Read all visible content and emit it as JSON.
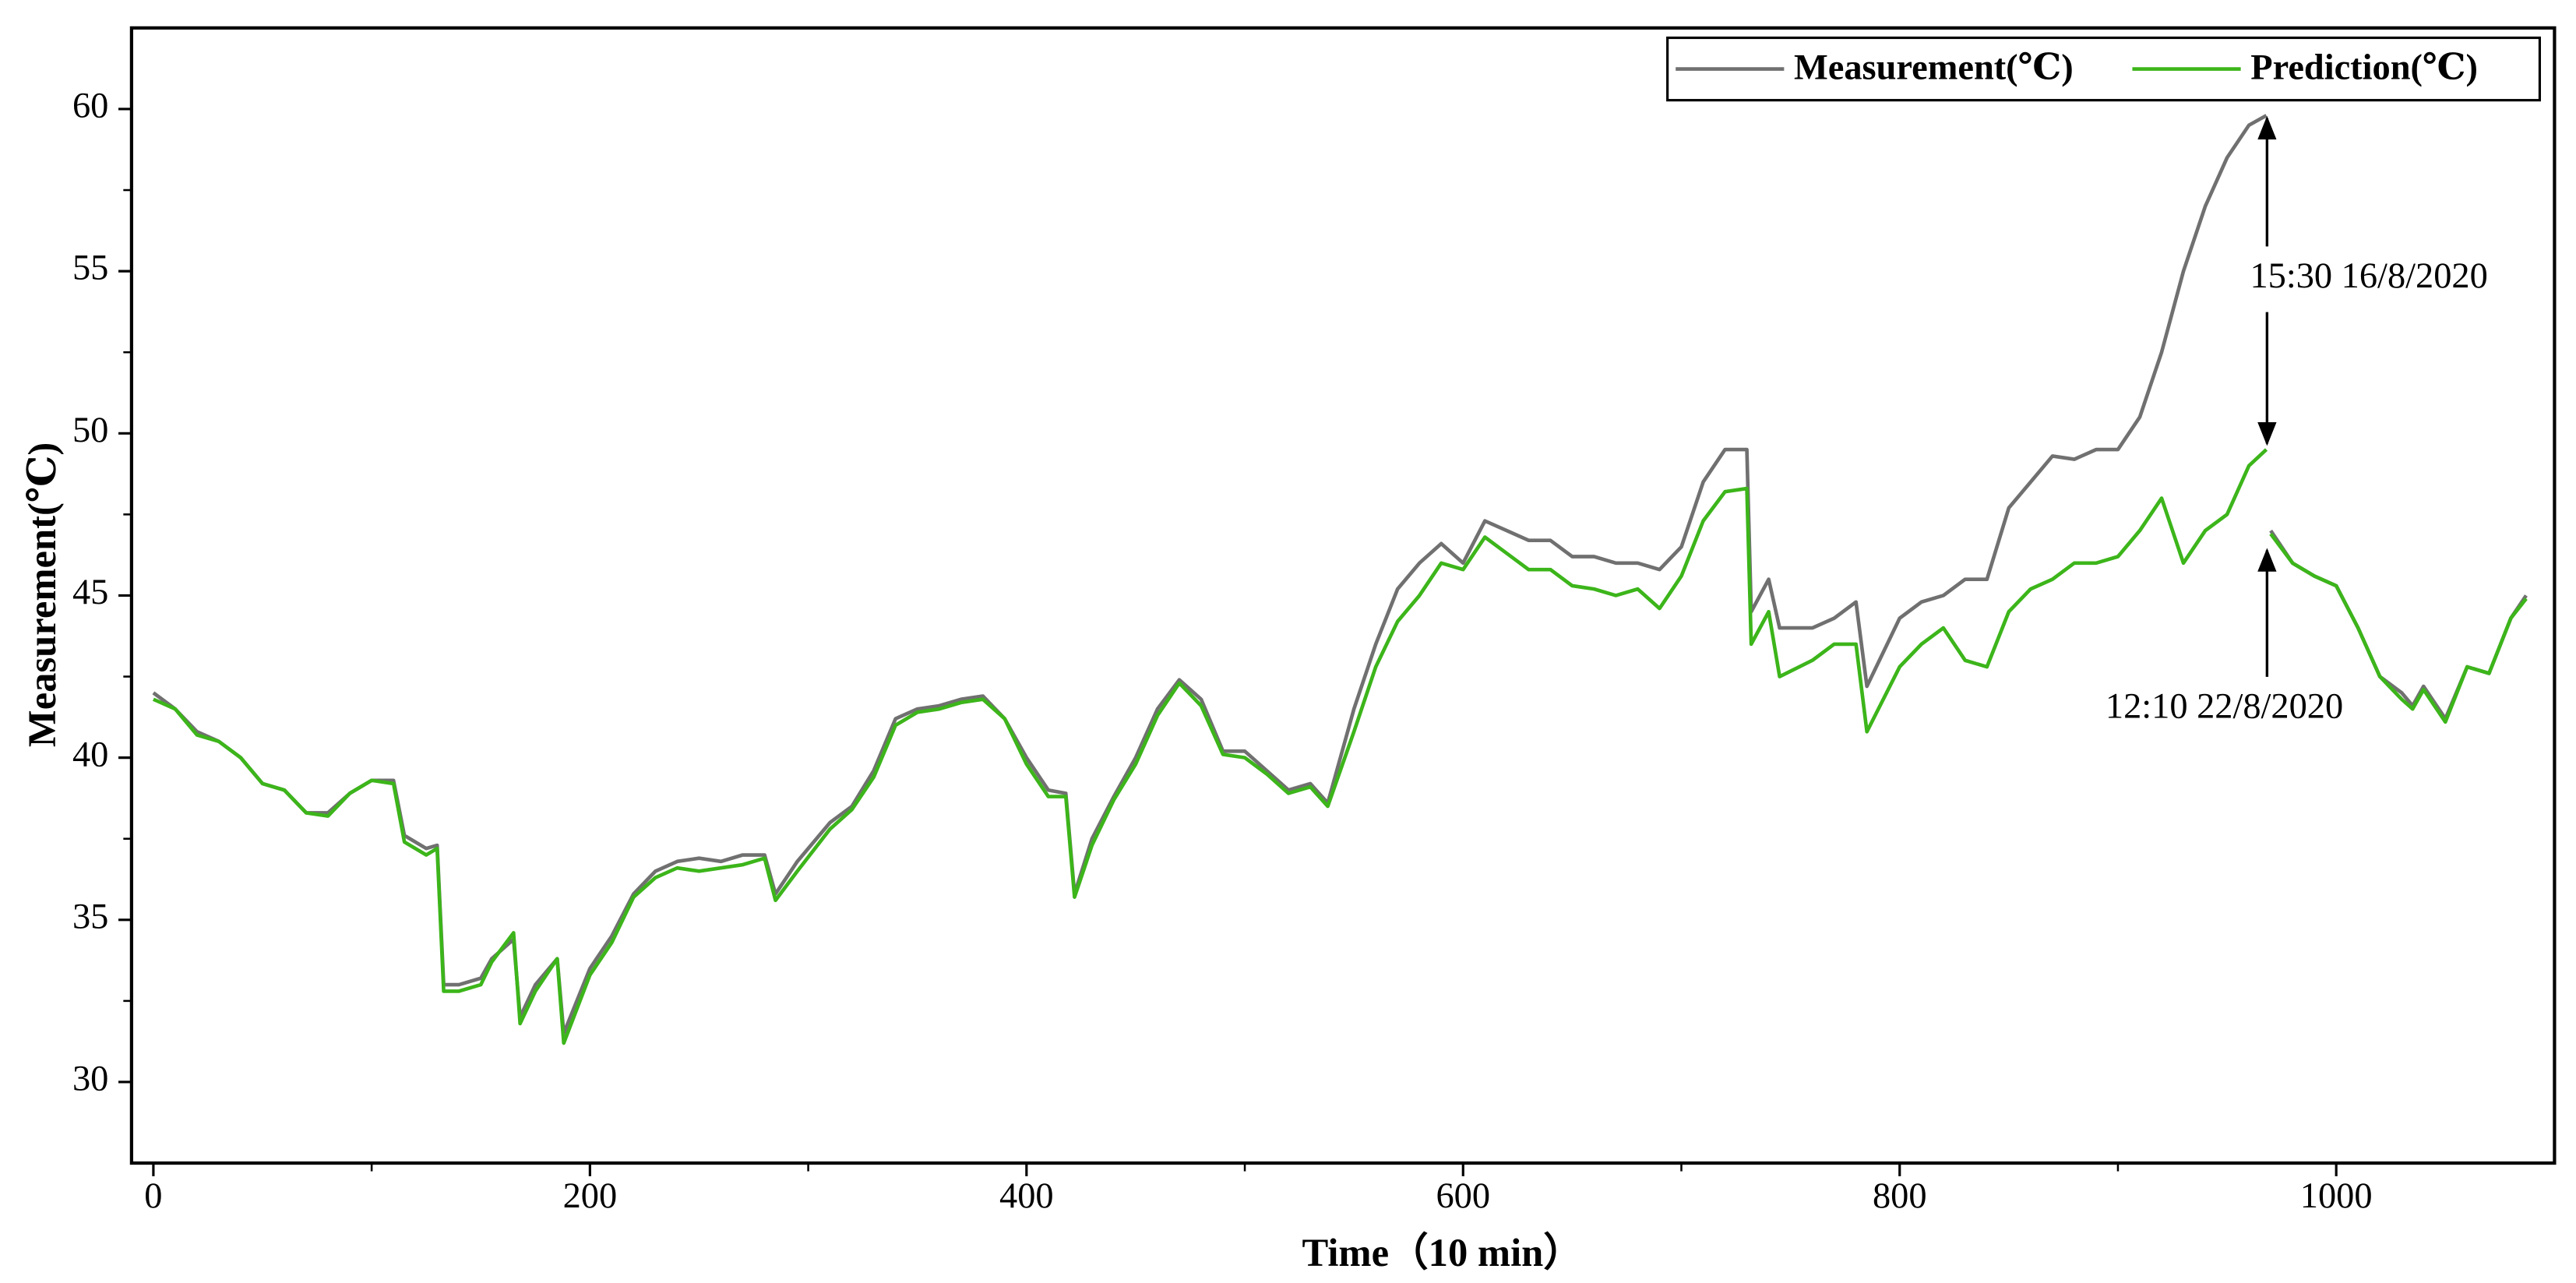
{
  "chart_data": {
    "type": "line",
    "xlabel": "Time（10 min）",
    "ylabel": "Measurement(℃)",
    "xlim": [
      -10,
      1100
    ],
    "ylim": [
      27.5,
      62.5
    ],
    "xticks": [
      0,
      200,
      400,
      600,
      800,
      1000
    ],
    "yticks": [
      30,
      35,
      40,
      45,
      50,
      55,
      60
    ],
    "legend": "upper right",
    "annotations": [
      "15:30 16/8/2020",
      "12:10 22/8/2020"
    ],
    "x": [
      0,
      10,
      20,
      30,
      40,
      50,
      60,
      70,
      80,
      90,
      100,
      110,
      115,
      125,
      130,
      133,
      140,
      150,
      155,
      165,
      168,
      175,
      185,
      188,
      200,
      210,
      220,
      230,
      240,
      250,
      260,
      270,
      280,
      285,
      295,
      310,
      320,
      330,
      340,
      350,
      360,
      370,
      380,
      390,
      400,
      410,
      418,
      422,
      430,
      440,
      450,
      460,
      470,
      480,
      490,
      500,
      510,
      520,
      530,
      538,
      550,
      560,
      570,
      580,
      590,
      600,
      610,
      620,
      630,
      640,
      650,
      660,
      670,
      680,
      690,
      700,
      710,
      720,
      730,
      732,
      740,
      745,
      760,
      770,
      780,
      785,
      800,
      810,
      820,
      830,
      840,
      850,
      860,
      870,
      880,
      890,
      900,
      910,
      920,
      930,
      940,
      950,
      960,
      968,
      969,
      970,
      980,
      990,
      1000,
      1010,
      1020,
      1030,
      1035,
      1040,
      1050,
      1060,
      1070,
      1080,
      1087
    ],
    "series": [
      {
        "name": "Measurement(℃)",
        "color": "#707070",
        "values": [
          42,
          41.5,
          40.8,
          40.5,
          40.0,
          39.2,
          39.0,
          38.3,
          38.3,
          38.9,
          39.3,
          39.3,
          37.6,
          37.2,
          37.3,
          33.0,
          33.0,
          33.2,
          33.8,
          34.4,
          32.0,
          33.0,
          33.8,
          31.5,
          33.5,
          34.5,
          35.8,
          36.5,
          36.8,
          36.9,
          36.8,
          37.0,
          37.0,
          35.8,
          36.8,
          38.0,
          38.5,
          39.6,
          41.2,
          41.5,
          41.6,
          41.8,
          41.9,
          41.2,
          40.0,
          39.0,
          38.9,
          35.8,
          37.5,
          38.8,
          40.0,
          41.5,
          42.4,
          41.8,
          40.2,
          40.2,
          39.6,
          39.0,
          39.2,
          38.6,
          41.5,
          43.5,
          45.2,
          46.0,
          46.6,
          46.0,
          47.3,
          47.0,
          46.7,
          46.7,
          46.2,
          46.2,
          46.0,
          46.0,
          45.8,
          46.5,
          48.5,
          49.5,
          49.5,
          44.5,
          45.5,
          44.0,
          44.0,
          44.3,
          44.8,
          42.2,
          44.3,
          44.8,
          45.0,
          45.5,
          45.5,
          47.7,
          48.5,
          49.3,
          49.2,
          49.5,
          49.5,
          50.5,
          52.5,
          55.0,
          57.0,
          58.5,
          59.5,
          59.8,
          null,
          47.0,
          46.0,
          45.6,
          45.3,
          44.0,
          42.5,
          42.0,
          41.6,
          42.2,
          41.2,
          42.8,
          42.6,
          44.3,
          45.0
        ]
      },
      {
        "name": "Prediction(℃)",
        "color": "#3cb51a",
        "values": [
          41.8,
          41.5,
          40.7,
          40.5,
          40.0,
          39.2,
          39.0,
          38.3,
          38.2,
          38.9,
          39.3,
          39.2,
          37.4,
          37.0,
          37.2,
          32.8,
          32.8,
          33.0,
          33.7,
          34.6,
          31.8,
          32.8,
          33.8,
          31.2,
          33.3,
          34.3,
          35.7,
          36.3,
          36.6,
          36.5,
          36.6,
          36.7,
          36.9,
          35.6,
          36.5,
          37.8,
          38.4,
          39.4,
          41.0,
          41.4,
          41.5,
          41.7,
          41.8,
          41.2,
          39.8,
          38.8,
          38.8,
          35.7,
          37.3,
          38.7,
          39.8,
          41.3,
          42.3,
          41.6,
          40.1,
          40.0,
          39.5,
          38.9,
          39.1,
          38.5,
          40.8,
          42.8,
          44.2,
          45.0,
          46.0,
          45.8,
          46.8,
          46.3,
          45.8,
          45.8,
          45.3,
          45.2,
          45.0,
          45.2,
          44.6,
          45.6,
          47.3,
          48.2,
          48.3,
          43.5,
          44.5,
          42.5,
          43.0,
          43.5,
          43.5,
          40.8,
          42.8,
          43.5,
          44.0,
          43.0,
          42.8,
          44.5,
          45.2,
          45.5,
          46.0,
          46.0,
          46.2,
          47.0,
          48.0,
          46.0,
          47.0,
          47.5,
          49.0,
          49.5,
          null,
          46.9,
          46.0,
          45.6,
          45.3,
          44.0,
          42.5,
          41.8,
          41.5,
          42.1,
          41.1,
          42.8,
          42.6,
          44.3,
          44.9
        ]
      }
    ]
  }
}
